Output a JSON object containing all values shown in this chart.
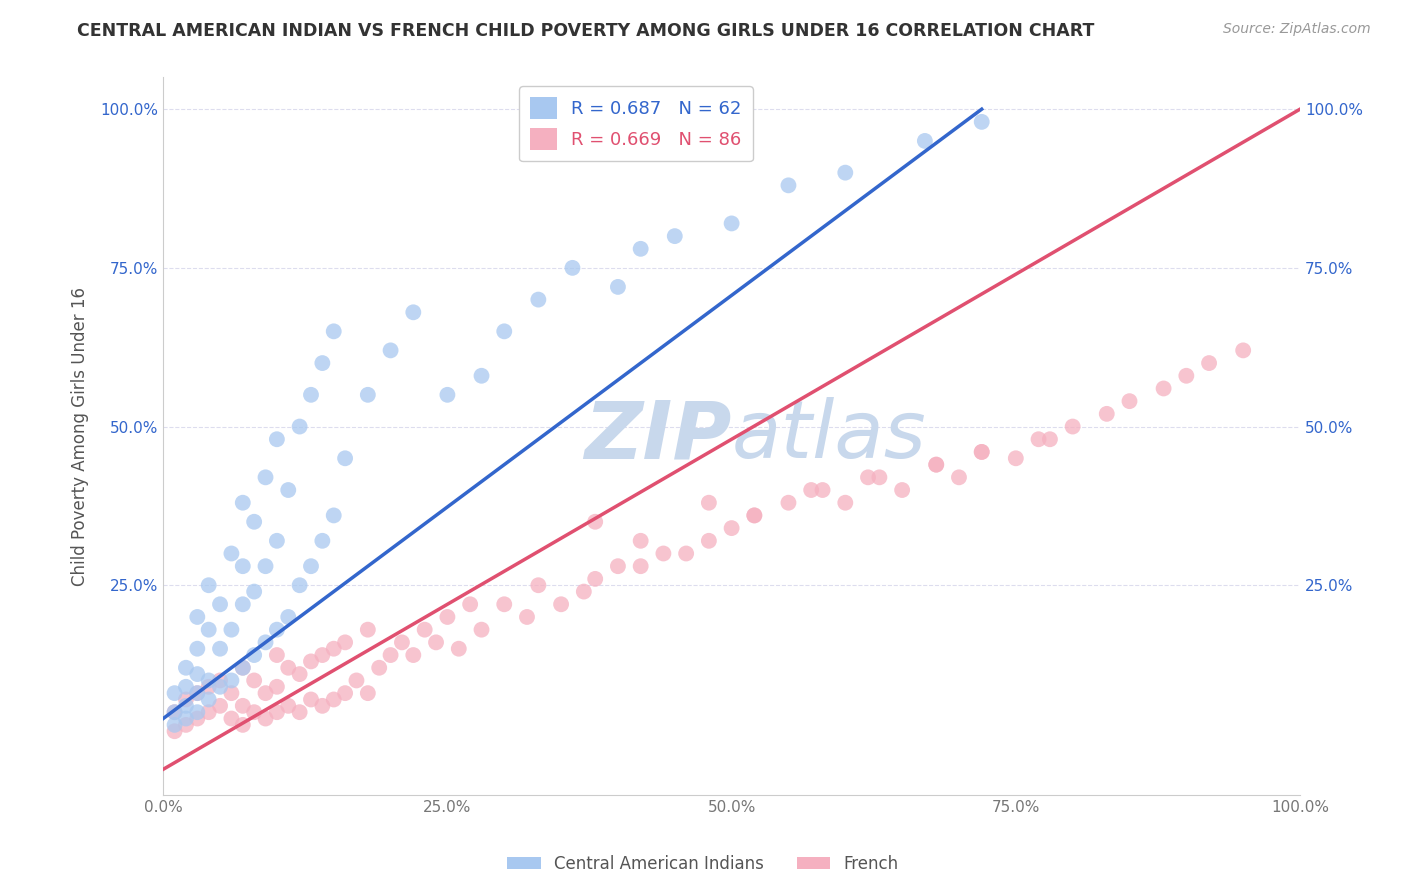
{
  "title": "CENTRAL AMERICAN INDIAN VS FRENCH CHILD POVERTY AMONG GIRLS UNDER 16 CORRELATION CHART",
  "source": "Source: ZipAtlas.com",
  "ylabel": "Child Poverty Among Girls Under 16",
  "legend_labels": [
    "Central American Indians",
    "French"
  ],
  "blue_R": 0.687,
  "blue_N": 62,
  "pink_R": 0.669,
  "pink_N": 86,
  "blue_color": "#A8C8F0",
  "pink_color": "#F5B0C0",
  "blue_line_color": "#3366CC",
  "pink_line_color": "#E05070",
  "background_color": "#FFFFFF",
  "watermark_color": "#C8D8EC",
  "blue_scatter_x": [
    0.01,
    0.01,
    0.01,
    0.02,
    0.02,
    0.02,
    0.02,
    0.03,
    0.03,
    0.03,
    0.03,
    0.03,
    0.04,
    0.04,
    0.04,
    0.04,
    0.05,
    0.05,
    0.05,
    0.06,
    0.06,
    0.06,
    0.07,
    0.07,
    0.07,
    0.07,
    0.08,
    0.08,
    0.08,
    0.09,
    0.09,
    0.09,
    0.1,
    0.1,
    0.1,
    0.11,
    0.11,
    0.12,
    0.12,
    0.13,
    0.13,
    0.14,
    0.14,
    0.15,
    0.15,
    0.16,
    0.18,
    0.2,
    0.22,
    0.25,
    0.28,
    0.3,
    0.33,
    0.36,
    0.4,
    0.42,
    0.45,
    0.5,
    0.55,
    0.6,
    0.67,
    0.72
  ],
  "blue_scatter_y": [
    0.03,
    0.05,
    0.08,
    0.04,
    0.06,
    0.09,
    0.12,
    0.05,
    0.08,
    0.11,
    0.15,
    0.2,
    0.07,
    0.1,
    0.18,
    0.25,
    0.09,
    0.15,
    0.22,
    0.1,
    0.18,
    0.3,
    0.12,
    0.22,
    0.28,
    0.38,
    0.14,
    0.24,
    0.35,
    0.16,
    0.28,
    0.42,
    0.18,
    0.32,
    0.48,
    0.2,
    0.4,
    0.25,
    0.5,
    0.28,
    0.55,
    0.32,
    0.6,
    0.36,
    0.65,
    0.45,
    0.55,
    0.62,
    0.68,
    0.55,
    0.58,
    0.65,
    0.7,
    0.75,
    0.72,
    0.78,
    0.8,
    0.82,
    0.88,
    0.9,
    0.95,
    0.98
  ],
  "pink_scatter_x": [
    0.01,
    0.01,
    0.02,
    0.02,
    0.03,
    0.03,
    0.04,
    0.04,
    0.05,
    0.05,
    0.06,
    0.06,
    0.07,
    0.07,
    0.07,
    0.08,
    0.08,
    0.09,
    0.09,
    0.1,
    0.1,
    0.1,
    0.11,
    0.11,
    0.12,
    0.12,
    0.13,
    0.13,
    0.14,
    0.14,
    0.15,
    0.15,
    0.16,
    0.16,
    0.17,
    0.18,
    0.18,
    0.19,
    0.2,
    0.21,
    0.22,
    0.23,
    0.24,
    0.25,
    0.26,
    0.27,
    0.28,
    0.3,
    0.32,
    0.33,
    0.35,
    0.37,
    0.38,
    0.4,
    0.42,
    0.44,
    0.46,
    0.48,
    0.5,
    0.52,
    0.55,
    0.58,
    0.6,
    0.62,
    0.65,
    0.68,
    0.7,
    0.72,
    0.75,
    0.78,
    0.8,
    0.83,
    0.85,
    0.88,
    0.9,
    0.92,
    0.95,
    0.38,
    0.42,
    0.48,
    0.52,
    0.57,
    0.63,
    0.68,
    0.72,
    0.77
  ],
  "pink_scatter_y": [
    0.02,
    0.05,
    0.03,
    0.07,
    0.04,
    0.08,
    0.05,
    0.09,
    0.06,
    0.1,
    0.04,
    0.08,
    0.03,
    0.06,
    0.12,
    0.05,
    0.1,
    0.04,
    0.08,
    0.05,
    0.09,
    0.14,
    0.06,
    0.12,
    0.05,
    0.11,
    0.07,
    0.13,
    0.06,
    0.14,
    0.07,
    0.15,
    0.08,
    0.16,
    0.1,
    0.08,
    0.18,
    0.12,
    0.14,
    0.16,
    0.14,
    0.18,
    0.16,
    0.2,
    0.15,
    0.22,
    0.18,
    0.22,
    0.2,
    0.25,
    0.22,
    0.24,
    0.26,
    0.28,
    0.28,
    0.3,
    0.3,
    0.32,
    0.34,
    0.36,
    0.38,
    0.4,
    0.38,
    0.42,
    0.4,
    0.44,
    0.42,
    0.46,
    0.45,
    0.48,
    0.5,
    0.52,
    0.54,
    0.56,
    0.58,
    0.6,
    0.62,
    0.35,
    0.32,
    0.38,
    0.36,
    0.4,
    0.42,
    0.44,
    0.46,
    0.48
  ],
  "blue_line_x0": 0.0,
  "blue_line_y0": 0.04,
  "blue_line_x1": 0.72,
  "blue_line_y1": 1.0,
  "pink_line_x0": 0.0,
  "pink_line_y0": -0.04,
  "pink_line_x1": 1.0,
  "pink_line_y1": 1.0,
  "xlim": [
    0.0,
    1.0
  ],
  "ylim": [
    -0.08,
    1.05
  ],
  "grid_color": "#DDDDEE"
}
